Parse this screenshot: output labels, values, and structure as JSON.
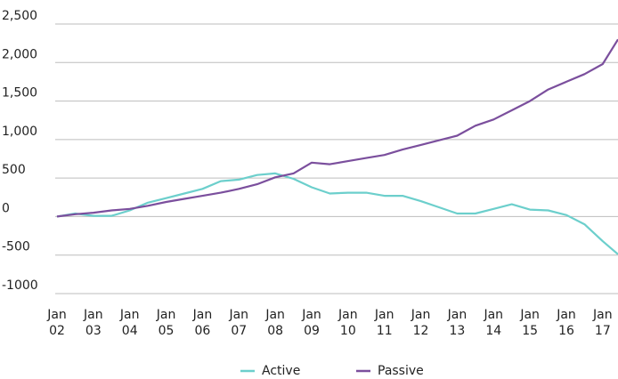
{
  "chart_data": {
    "type": "line",
    "x": [
      2002,
      2002.5,
      2003,
      2003.5,
      2004,
      2004.5,
      2005,
      2005.5,
      2006,
      2006.5,
      2007,
      2007.5,
      2008,
      2008.5,
      2009,
      2009.5,
      2010,
      2010.5,
      2011,
      2011.5,
      2012,
      2012.5,
      2013,
      2013.5,
      2014,
      2014.5,
      2015,
      2015.5,
      2016,
      2016.5,
      2017,
      2017.42
    ],
    "series": [
      {
        "name": "Active",
        "color": "#6ccfcc",
        "values": [
          0,
          40,
          10,
          10,
          80,
          180,
          240,
          300,
          360,
          460,
          480,
          540,
          560,
          490,
          380,
          300,
          310,
          310,
          270,
          270,
          200,
          120,
          40,
          40,
          100,
          160,
          90,
          80,
          20,
          -100,
          -320,
          -490
        ]
      },
      {
        "name": "Passive",
        "color": "#7b4f9d",
        "values": [
          0,
          30,
          50,
          80,
          100,
          140,
          190,
          230,
          270,
          310,
          360,
          420,
          510,
          560,
          700,
          680,
          720,
          760,
          800,
          870,
          930,
          990,
          1050,
          1180,
          1260,
          1380,
          1500,
          1650,
          1750,
          1850,
          1980,
          2300
        ]
      }
    ],
    "xlim": [
      2002,
      2017.42
    ],
    "xticks": [
      {
        "value": 2002,
        "label": "Jan 02"
      },
      {
        "value": 2003,
        "label": "Jan 03"
      },
      {
        "value": 2004,
        "label": "Jan 04"
      },
      {
        "value": 2005,
        "label": "Jan 05"
      },
      {
        "value": 2006,
        "label": "Jan 06"
      },
      {
        "value": 2007,
        "label": "Jan 07"
      },
      {
        "value": 2008,
        "label": "Jan 08"
      },
      {
        "value": 2009,
        "label": "Jan 09"
      },
      {
        "value": 2010,
        "label": "Jan 10"
      },
      {
        "value": 2011,
        "label": "Jan 11"
      },
      {
        "value": 2012,
        "label": "Jan 12"
      },
      {
        "value": 2013,
        "label": "Jan 13"
      },
      {
        "value": 2014,
        "label": "Jan 14"
      },
      {
        "value": 2015,
        "label": "Jan 15"
      },
      {
        "value": 2016,
        "label": "Jan 16"
      },
      {
        "value": 2017,
        "label": "Jan 17"
      }
    ],
    "ylim": [
      -1000,
      2500
    ],
    "yticks": [
      {
        "value": 2500,
        "label": "2,500"
      },
      {
        "value": 2000,
        "label": "2,000"
      },
      {
        "value": 1500,
        "label": "1,500"
      },
      {
        "value": 1000,
        "label": "1,000"
      },
      500,
      0,
      -500,
      -1000
    ],
    "grid": true
  }
}
